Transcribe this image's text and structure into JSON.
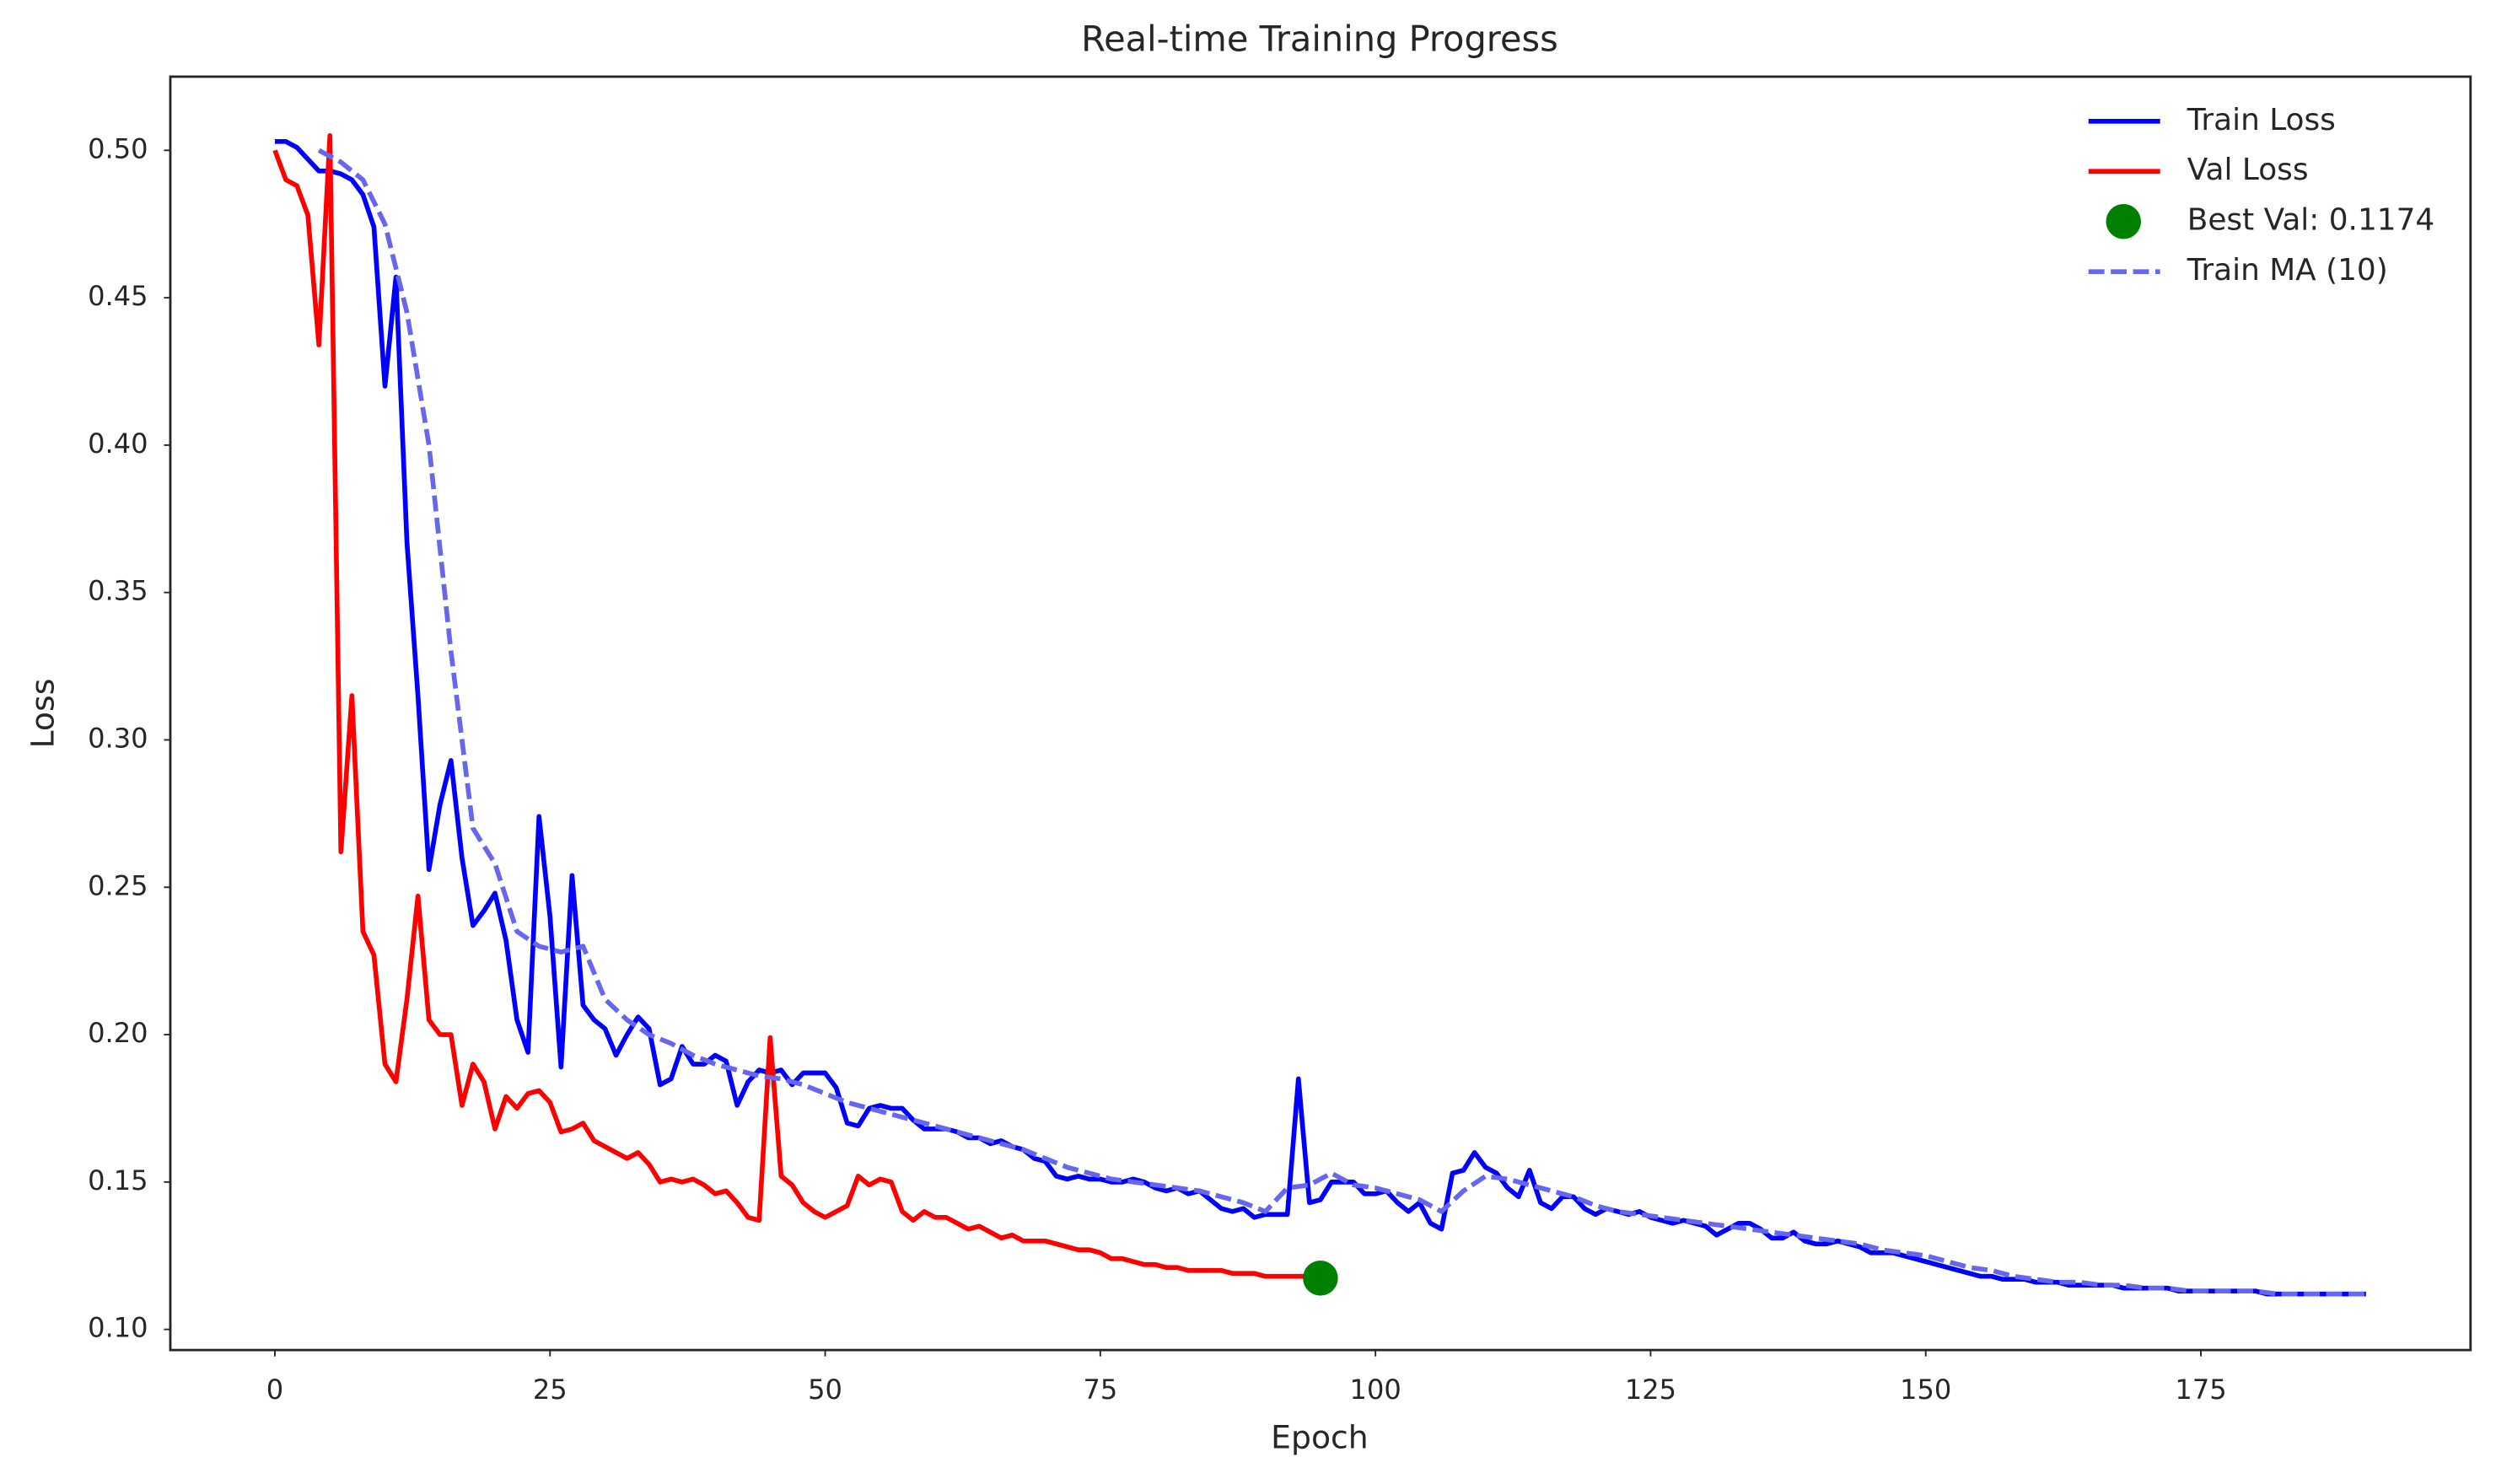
{
  "chart_data": {
    "type": "line",
    "title": "Real-time Training Progress",
    "x_label": "Epoch",
    "y_label": "Loss",
    "xlim": [
      -9.5,
      199.5
    ],
    "ylim": [
      0.093,
      0.525
    ],
    "xticks": [
      0,
      25,
      50,
      75,
      100,
      125,
      150,
      175
    ],
    "yticks": [
      {
        "value": 0.1,
        "label": "0.10"
      },
      0.15,
      {
        "value": 0.2,
        "label": "0.20"
      },
      0.25,
      {
        "value": 0.3,
        "label": "0.30"
      },
      0.35,
      {
        "value": 0.4,
        "label": "0.40"
      },
      0.45,
      {
        "value": 0.5,
        "label": "0.50"
      }
    ],
    "grid": false,
    "legend": "upper right",
    "series": [
      {
        "name": "Train Loss",
        "color": "#0000ff",
        "style": "solid",
        "x": [
          0,
          1,
          2,
          3,
          4,
          5,
          6,
          7,
          8,
          9,
          10,
          11,
          12,
          13,
          14,
          15,
          16,
          17,
          18,
          19,
          20,
          21,
          22,
          23,
          24,
          25,
          26,
          27,
          28,
          29,
          30,
          31,
          32,
          33,
          34,
          35,
          36,
          37,
          38,
          39,
          40,
          41,
          42,
          43,
          44,
          45,
          46,
          47,
          48,
          49,
          50,
          51,
          52,
          53,
          54,
          55,
          56,
          57,
          58,
          59,
          60,
          61,
          62,
          63,
          64,
          65,
          66,
          67,
          68,
          69,
          70,
          71,
          72,
          73,
          74,
          75,
          76,
          77,
          78,
          79,
          80,
          81,
          82,
          83,
          84,
          85,
          86,
          87,
          88,
          89,
          90,
          91,
          92,
          93,
          94,
          95,
          96,
          97,
          98,
          99,
          100,
          101,
          102,
          103,
          104,
          105,
          106,
          107,
          108,
          109,
          110,
          111,
          112,
          113,
          114,
          115,
          116,
          117,
          118,
          119,
          120,
          121,
          122,
          123,
          124,
          125,
          126,
          127,
          128,
          129,
          130,
          131,
          132,
          133,
          134,
          135,
          136,
          137,
          138,
          139,
          140,
          141,
          142,
          143,
          144,
          145,
          146,
          147,
          148,
          149,
          150,
          151,
          152,
          153,
          154,
          155,
          156,
          157,
          158,
          159,
          160,
          161,
          162,
          163,
          164,
          165,
          166,
          167,
          168,
          169,
          170,
          171,
          172,
          173,
          174,
          175,
          176,
          177,
          178,
          179,
          180,
          181,
          182,
          183,
          184,
          185,
          186,
          187,
          188,
          189,
          190
        ],
        "values": [
          0.503,
          0.503,
          0.501,
          0.497,
          0.493,
          0.493,
          0.492,
          0.49,
          0.485,
          0.474,
          0.42,
          0.457,
          0.367,
          0.315,
          0.256,
          0.278,
          0.293,
          0.26,
          0.237,
          0.242,
          0.248,
          0.232,
          0.205,
          0.194,
          0.274,
          0.24,
          0.189,
          0.254,
          0.21,
          0.205,
          0.202,
          0.193,
          0.2,
          0.206,
          0.202,
          0.183,
          0.185,
          0.196,
          0.19,
          0.19,
          0.193,
          0.191,
          0.176,
          0.184,
          0.188,
          0.187,
          0.188,
          0.183,
          0.187,
          0.187,
          0.187,
          0.182,
          0.17,
          0.169,
          0.175,
          0.176,
          0.175,
          0.175,
          0.171,
          0.168,
          0.168,
          0.168,
          0.167,
          0.165,
          0.165,
          0.163,
          0.164,
          0.162,
          0.161,
          0.158,
          0.157,
          0.152,
          0.151,
          0.152,
          0.151,
          0.151,
          0.15,
          0.15,
          0.151,
          0.15,
          0.148,
          0.147,
          0.148,
          0.146,
          0.147,
          0.144,
          0.141,
          0.14,
          0.141,
          0.138,
          0.139,
          0.139,
          0.139,
          0.185,
          0.143,
          0.144,
          0.15,
          0.15,
          0.15,
          0.146,
          0.146,
          0.147,
          0.143,
          0.14,
          0.143,
          0.136,
          0.134,
          0.153,
          0.154,
          0.16,
          0.155,
          0.153,
          0.148,
          0.145,
          0.154,
          0.143,
          0.141,
          0.145,
          0.145,
          0.141,
          0.139,
          0.141,
          0.14,
          0.139,
          0.14,
          0.138,
          0.137,
          0.136,
          0.137,
          0.136,
          0.135,
          0.132,
          0.134,
          0.136,
          0.136,
          0.134,
          0.131,
          0.131,
          0.133,
          0.13,
          0.129,
          0.129,
          0.13,
          0.129,
          0.128,
          0.126,
          0.126,
          0.126,
          0.125,
          0.124,
          0.123,
          0.122,
          0.121,
          0.12,
          0.119,
          0.118,
          0.118,
          0.117,
          0.117,
          0.117,
          0.116,
          0.116,
          0.116,
          0.115,
          0.115,
          0.115,
          0.115,
          0.115,
          0.114,
          0.114,
          0.114,
          0.114,
          0.114,
          0.113,
          0.113,
          0.113,
          0.113,
          0.113,
          0.113,
          0.113,
          0.113,
          0.112,
          0.112,
          0.112,
          0.112,
          0.112,
          0.112,
          0.112,
          0.112,
          0.112,
          0.112
        ]
      },
      {
        "name": "Val Loss",
        "color": "#ff0000",
        "style": "solid",
        "x": [
          0,
          1,
          2,
          3,
          4,
          5,
          6,
          7,
          8,
          9,
          10,
          11,
          12,
          13,
          14,
          15,
          16,
          17,
          18,
          19,
          20,
          21,
          22,
          23,
          24,
          25,
          26,
          27,
          28,
          29,
          30,
          31,
          32,
          33,
          34,
          35,
          36,
          37,
          38,
          39,
          40,
          41,
          42,
          43,
          44,
          45,
          46,
          47,
          48,
          49,
          50,
          51,
          52,
          53,
          54,
          55,
          56,
          57,
          58,
          59,
          60,
          61,
          62,
          63,
          64,
          65,
          66,
          67,
          68,
          69,
          70,
          71,
          72,
          73,
          74,
          75,
          76,
          77,
          78,
          79,
          80,
          81,
          82,
          83,
          84,
          85,
          86,
          87,
          88,
          89,
          90,
          91,
          92,
          93,
          94,
          95
        ],
        "values": [
          0.5,
          0.49,
          0.488,
          0.478,
          0.434,
          0.505,
          0.262,
          0.315,
          0.235,
          0.227,
          0.19,
          0.184,
          0.212,
          0.247,
          0.205,
          0.2,
          0.2,
          0.176,
          0.19,
          0.184,
          0.168,
          0.179,
          0.175,
          0.18,
          0.181,
          0.177,
          0.167,
          0.168,
          0.17,
          0.164,
          0.162,
          0.16,
          0.158,
          0.16,
          0.156,
          0.15,
          0.151,
          0.15,
          0.151,
          0.149,
          0.146,
          0.147,
          0.143,
          0.138,
          0.137,
          0.199,
          0.152,
          0.149,
          0.143,
          0.14,
          0.138,
          0.14,
          0.142,
          0.152,
          0.149,
          0.151,
          0.15,
          0.14,
          0.137,
          0.14,
          0.138,
          0.138,
          0.136,
          0.134,
          0.135,
          0.133,
          0.131,
          0.132,
          0.13,
          0.13,
          0.13,
          0.129,
          0.128,
          0.127,
          0.127,
          0.126,
          0.124,
          0.124,
          0.123,
          0.122,
          0.122,
          0.121,
          0.121,
          0.12,
          0.12,
          0.12,
          0.12,
          0.119,
          0.119,
          0.119,
          0.118,
          0.118,
          0.118,
          0.118,
          0.118,
          0.1174
        ]
      },
      {
        "name": "Best Val: 0.1174",
        "color": "#008000",
        "style": "marker",
        "x": [
          95
        ],
        "values": [
          0.1174
        ]
      },
      {
        "name": "Train MA (10)",
        "color": "#6666ee",
        "style": "dashed",
        "x": [
          4,
          6,
          8,
          10,
          12,
          14,
          16,
          18,
          20,
          22,
          24,
          26,
          28,
          30,
          32,
          34,
          36,
          38,
          40,
          42,
          44,
          46,
          48,
          50,
          52,
          54,
          56,
          58,
          60,
          62,
          64,
          66,
          68,
          70,
          72,
          74,
          76,
          78,
          80,
          82,
          84,
          86,
          88,
          90,
          92,
          94,
          96,
          98,
          100,
          102,
          104,
          106,
          108,
          110,
          112,
          114,
          116,
          118,
          120,
          122,
          124,
          126,
          128,
          130,
          132,
          134,
          136,
          138,
          140,
          142,
          144,
          146,
          148,
          150,
          152,
          154,
          156,
          158,
          160,
          162,
          164,
          166,
          168,
          170,
          172,
          174,
          176,
          178,
          180,
          182,
          184,
          186,
          188,
          190
        ],
        "values": [
          0.5,
          0.496,
          0.49,
          0.475,
          0.445,
          0.4,
          0.33,
          0.27,
          0.258,
          0.235,
          0.23,
          0.228,
          0.23,
          0.212,
          0.205,
          0.2,
          0.197,
          0.193,
          0.19,
          0.188,
          0.186,
          0.185,
          0.183,
          0.18,
          0.177,
          0.175,
          0.173,
          0.171,
          0.169,
          0.167,
          0.165,
          0.163,
          0.161,
          0.158,
          0.155,
          0.153,
          0.151,
          0.15,
          0.149,
          0.148,
          0.147,
          0.145,
          0.143,
          0.14,
          0.148,
          0.149,
          0.153,
          0.149,
          0.148,
          0.146,
          0.144,
          0.14,
          0.147,
          0.152,
          0.151,
          0.149,
          0.147,
          0.145,
          0.142,
          0.14,
          0.139,
          0.138,
          0.137,
          0.136,
          0.135,
          0.134,
          0.133,
          0.132,
          0.131,
          0.13,
          0.129,
          0.127,
          0.126,
          0.125,
          0.123,
          0.121,
          0.12,
          0.118,
          0.117,
          0.116,
          0.116,
          0.115,
          0.115,
          0.114,
          0.114,
          0.113,
          0.113,
          0.113,
          0.113,
          0.112,
          0.112,
          0.112,
          0.112,
          0.112
        ]
      }
    ]
  }
}
